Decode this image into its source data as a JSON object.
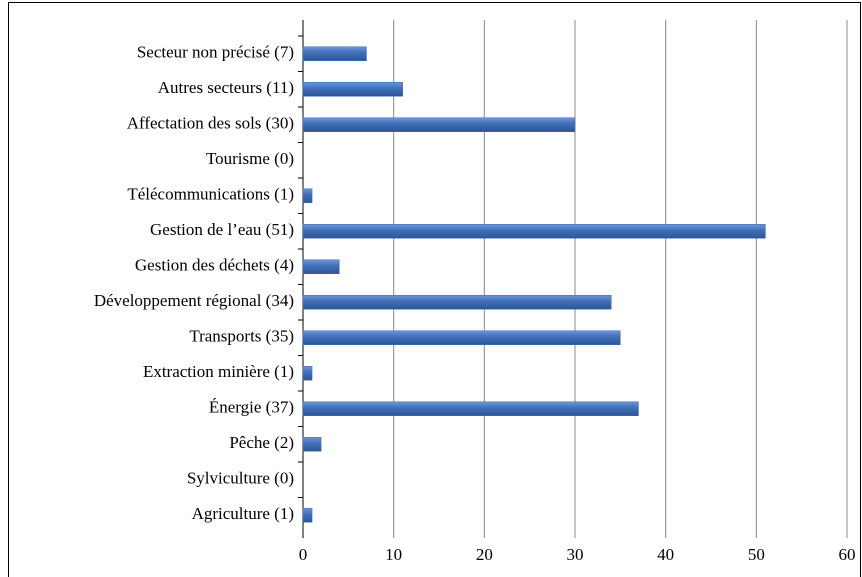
{
  "chart_data": {
    "type": "bar",
    "orientation": "horizontal",
    "categories": [
      "Secteur non précisé (7)",
      "Autres secteurs (11)",
      "Affectation des sols (30)",
      "Tourisme (0)",
      "Télécommunications (1)",
      "Gestion de l’eau (51)",
      "Gestion des déchets (4)",
      "Développement régional (34)",
      "Transports (35)",
      "Extraction minière (1)",
      "Énergie (37)",
      "Pêche (2)",
      "Sylviculture (0)",
      "Agriculture (1)"
    ],
    "values": [
      7,
      11,
      30,
      0,
      1,
      51,
      4,
      34,
      35,
      1,
      37,
      2,
      0,
      1
    ],
    "color": "#3f6fb8",
    "xlim": [
      0,
      60
    ],
    "xticks": [
      0,
      10,
      20,
      30,
      40,
      50,
      60
    ],
    "grid": true
  }
}
